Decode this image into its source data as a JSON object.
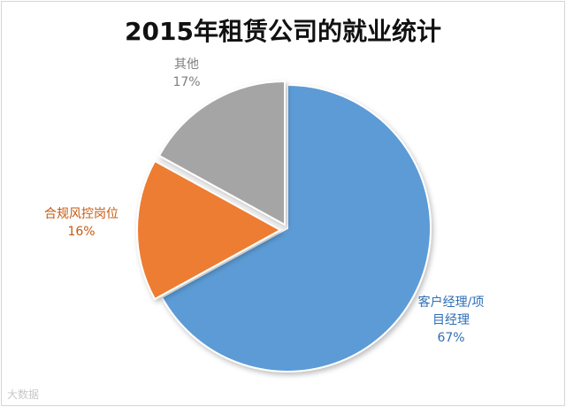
{
  "chart_data": {
    "type": "pie",
    "title": "2015年租赁公司的就业统计",
    "slices": [
      {
        "name": "客户经理/项目经理",
        "label_lines": [
          "客户经理/项",
          "目经理"
        ],
        "value": 67,
        "value_label": "67%",
        "color": "#5b9bd5",
        "label_color": "#2e6fb5"
      },
      {
        "name": "合规风控岗位",
        "label_lines": [
          "合规风控岗位"
        ],
        "value": 16,
        "value_label": "16%",
        "color": "#ed7d31",
        "label_color": "#c55a11"
      },
      {
        "name": "其他",
        "label_lines": [
          "其他"
        ],
        "value": 17,
        "value_label": "17%",
        "color": "#a5a5a5",
        "label_color": "#7f7f7f"
      }
    ]
  },
  "watermark": "大数据"
}
